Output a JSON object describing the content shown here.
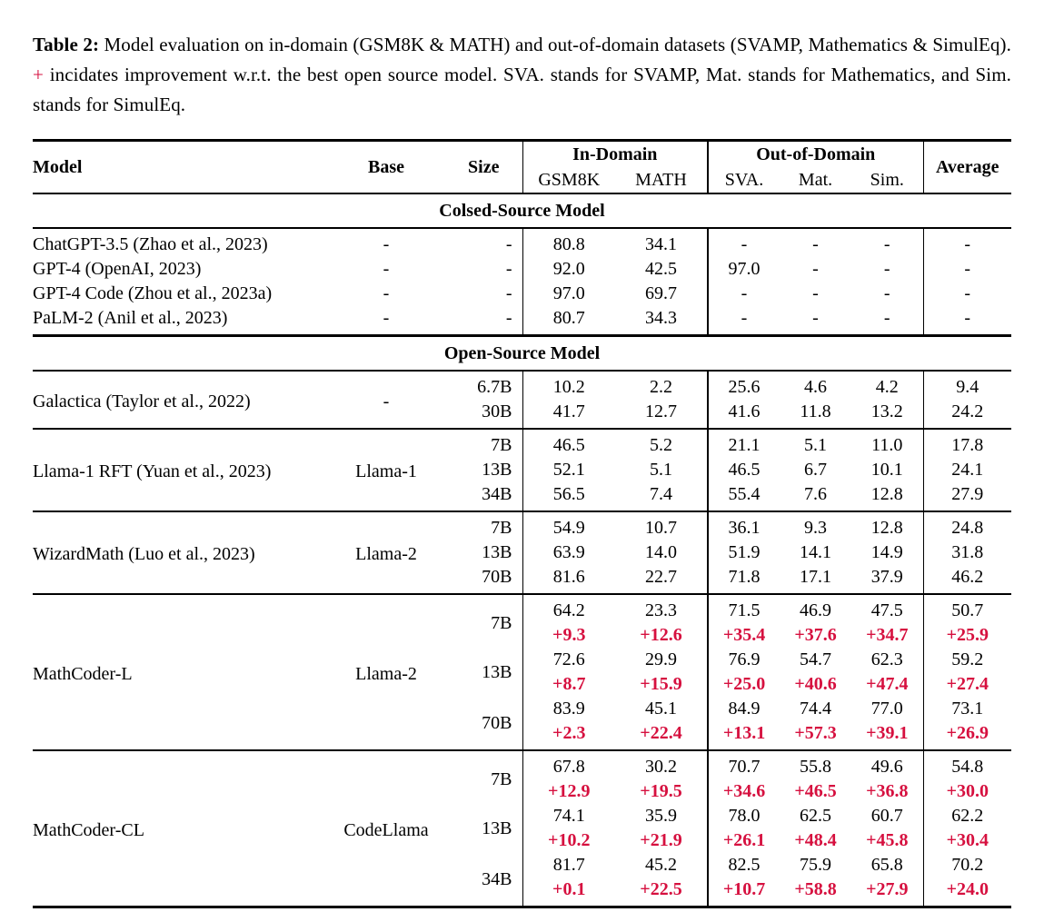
{
  "caption": {
    "label": "Table 2:",
    "text_before_plus": "Model evaluation on in-domain (GSM8K & MATH) and out-of-domain datasets (SVAMP, Mathematics & SimulEq).",
    "plus_sign": "+",
    "text_after_plus": "incidates improvement w.r.t. the best open source model. SVA. stands for SVAMP, Mat. stands for Mathematics, and Sim. stands for SimulEq."
  },
  "colors": {
    "improvement_red": "#d6103f",
    "rule_black": "#000000"
  },
  "table": {
    "header": {
      "model": "Model",
      "base": "Base",
      "size": "Size",
      "in_domain": "In-Domain",
      "out_of_domain": "Out-of-Domain",
      "average": "Average",
      "in_domain_cols": [
        "GSM8K",
        "MATH"
      ],
      "out_domain_cols": [
        "SVA.",
        "Mat.",
        "Sim."
      ]
    },
    "sections": [
      {
        "title": "Colsed-Source Model",
        "separated": false,
        "groups": [
          {
            "model": "ChatGPT-3.5 (Zhao et al., 2023)",
            "base": "-",
            "rows": [
              {
                "size": "-",
                "values": [
                  "80.8",
                  "34.1",
                  "-",
                  "-",
                  "-",
                  "-"
                ]
              }
            ]
          },
          {
            "model": "GPT-4 (OpenAI, 2023)",
            "base": "-",
            "rows": [
              {
                "size": "-",
                "values": [
                  "92.0",
                  "42.5",
                  "97.0",
                  "-",
                  "-",
                  "-"
                ]
              }
            ]
          },
          {
            "model": "GPT-4 Code (Zhou et al., 2023a)",
            "base": "-",
            "rows": [
              {
                "size": "-",
                "values": [
                  "97.0",
                  "69.7",
                  "-",
                  "-",
                  "-",
                  "-"
                ]
              }
            ]
          },
          {
            "model": "PaLM-2 (Anil et al., 2023)",
            "base": "-",
            "rows": [
              {
                "size": "-",
                "values": [
                  "80.7",
                  "34.3",
                  "-",
                  "-",
                  "-",
                  "-"
                ]
              }
            ]
          }
        ]
      },
      {
        "title": "Open-Source Model",
        "separated": true,
        "groups": [
          {
            "model": "Galactica (Taylor et al., 2022)",
            "base": "-",
            "rows": [
              {
                "size": "6.7B",
                "values": [
                  "10.2",
                  "2.2",
                  "25.6",
                  "4.6",
                  "4.2",
                  "9.4"
                ]
              },
              {
                "size": "30B",
                "values": [
                  "41.7",
                  "12.7",
                  "41.6",
                  "11.8",
                  "13.2",
                  "24.2"
                ]
              }
            ]
          },
          {
            "model": "Llama-1 RFT (Yuan et al., 2023)",
            "base": "Llama-1",
            "rows": [
              {
                "size": "7B",
                "values": [
                  "46.5",
                  "5.2",
                  "21.1",
                  "5.1",
                  "11.0",
                  "17.8"
                ]
              },
              {
                "size": "13B",
                "values": [
                  "52.1",
                  "5.1",
                  "46.5",
                  "6.7",
                  "10.1",
                  "24.1"
                ]
              },
              {
                "size": "34B",
                "values": [
                  "56.5",
                  "7.4",
                  "55.4",
                  "7.6",
                  "12.8",
                  "27.9"
                ]
              }
            ]
          },
          {
            "model": "WizardMath (Luo et al., 2023)",
            "base": "Llama-2",
            "rows": [
              {
                "size": "7B",
                "values": [
                  "54.9",
                  "10.7",
                  "36.1",
                  "9.3",
                  "12.8",
                  "24.8"
                ]
              },
              {
                "size": "13B",
                "values": [
                  "63.9",
                  "14.0",
                  "51.9",
                  "14.1",
                  "14.9",
                  "31.8"
                ]
              },
              {
                "size": "70B",
                "values": [
                  "81.6",
                  "22.7",
                  "71.8",
                  "17.1",
                  "37.9",
                  "46.2"
                ]
              }
            ]
          },
          {
            "model": "MathCoder-L",
            "base": "Llama-2",
            "rows": [
              {
                "size": "7B",
                "values": [
                  "64.2",
                  "23.3",
                  "71.5",
                  "46.9",
                  "47.5",
                  "50.7"
                ],
                "improvements": [
                  "+9.3",
                  "+12.6",
                  "+35.4",
                  "+37.6",
                  "+34.7",
                  "+25.9"
                ]
              },
              {
                "size": "13B",
                "values": [
                  "72.6",
                  "29.9",
                  "76.9",
                  "54.7",
                  "62.3",
                  "59.2"
                ],
                "improvements": [
                  "+8.7",
                  "+15.9",
                  "+25.0",
                  "+40.6",
                  "+47.4",
                  "+27.4"
                ]
              },
              {
                "size": "70B",
                "values": [
                  "83.9",
                  "45.1",
                  "84.9",
                  "74.4",
                  "77.0",
                  "73.1"
                ],
                "improvements": [
                  "+2.3",
                  "+22.4",
                  "+13.1",
                  "+57.3",
                  "+39.1",
                  "+26.9"
                ]
              }
            ]
          },
          {
            "model": "MathCoder-CL",
            "base": "CodeLlama",
            "rows": [
              {
                "size": "7B",
                "values": [
                  "67.8",
                  "30.2",
                  "70.7",
                  "55.8",
                  "49.6",
                  "54.8"
                ],
                "improvements": [
                  "+12.9",
                  "+19.5",
                  "+34.6",
                  "+46.5",
                  "+36.8",
                  "+30.0"
                ]
              },
              {
                "size": "13B",
                "values": [
                  "74.1",
                  "35.9",
                  "78.0",
                  "62.5",
                  "60.7",
                  "62.2"
                ],
                "improvements": [
                  "+10.2",
                  "+21.9",
                  "+26.1",
                  "+48.4",
                  "+45.8",
                  "+30.4"
                ]
              },
              {
                "size": "34B",
                "values": [
                  "81.7",
                  "45.2",
                  "82.5",
                  "75.9",
                  "65.8",
                  "70.2"
                ],
                "improvements": [
                  "+0.1",
                  "+22.5",
                  "+10.7",
                  "+58.8",
                  "+27.9",
                  "+24.0"
                ]
              }
            ]
          }
        ]
      }
    ]
  }
}
